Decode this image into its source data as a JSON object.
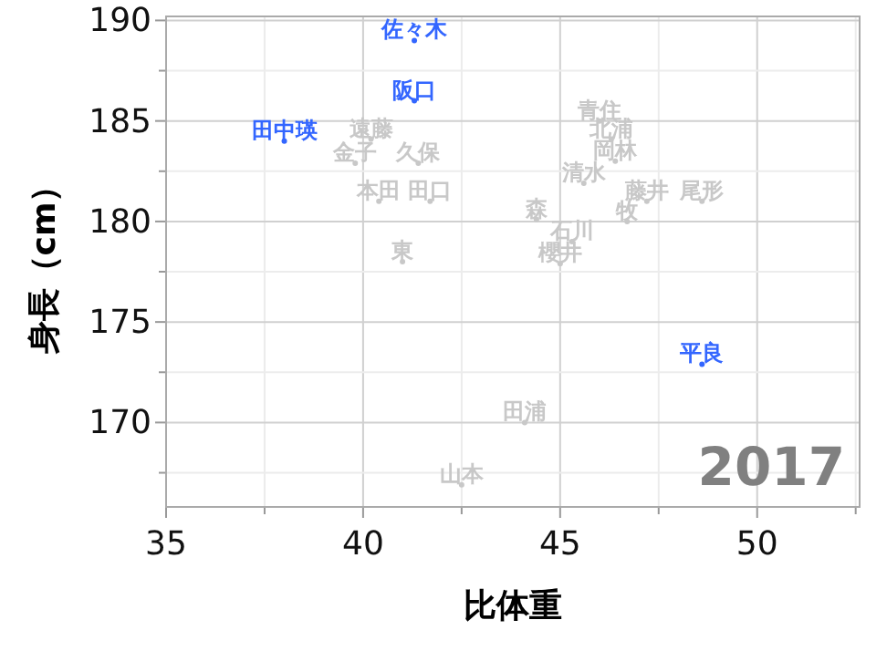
{
  "chart_data": {
    "type": "scatter",
    "xlabel": "比体重",
    "ylabel": "身長（cm）",
    "annotations": [
      "2017"
    ],
    "xlim": [
      35,
      52.6
    ],
    "ylim": [
      165.8,
      190.2
    ],
    "xticks": [
      35,
      {
        "value": 37.5,
        "label": null
      },
      40,
      {
        "value": 42.5,
        "label": null
      },
      45,
      {
        "value": 47.5,
        "label": null
      },
      50,
      {
        "value": 52.5,
        "label": null
      }
    ],
    "yticks": [
      {
        "value": 167.5,
        "label": null
      },
      170,
      {
        "value": 172.5,
        "label": null
      },
      175,
      {
        "value": 177.5,
        "label": null
      },
      180,
      {
        "value": 182.5,
        "label": null
      },
      185,
      {
        "value": 187.5,
        "label": null
      },
      190
    ],
    "grid": true,
    "marker": "circle",
    "series": [
      {
        "color": "#3366ff",
        "x": [
          41.3,
          41.3,
          38.0,
          48.6
        ],
        "values": [
          189.0,
          186.0,
          184.0,
          172.9
        ],
        "value_labels": [
          "佐々木",
          "阪口",
          "田中瑛",
          "平良"
        ]
      },
      {
        "color": "#c8c8c8",
        "x": [
          40.2,
          39.8,
          41.4,
          40.4,
          41.7,
          41.0,
          44.4,
          45.3,
          45.0,
          46.7,
          47.2,
          48.6,
          45.6,
          46.4,
          46.3,
          46.0,
          44.1,
          42.5
        ],
        "values": [
          184.1,
          182.9,
          182.9,
          181.0,
          181.0,
          178.0,
          180.1,
          179.0,
          177.9,
          180.0,
          181.0,
          181.0,
          181.9,
          183.0,
          184.1,
          185.0,
          170.0,
          166.9
        ],
        "value_labels": [
          "遠藤",
          "金子",
          "久保",
          "本田",
          "田口",
          "東",
          "森",
          "石川",
          "櫻井",
          "牧",
          "藤井",
          "尾形",
          "清水",
          "岡林",
          "北浦",
          "青住",
          "田浦",
          "山本"
        ]
      }
    ]
  }
}
